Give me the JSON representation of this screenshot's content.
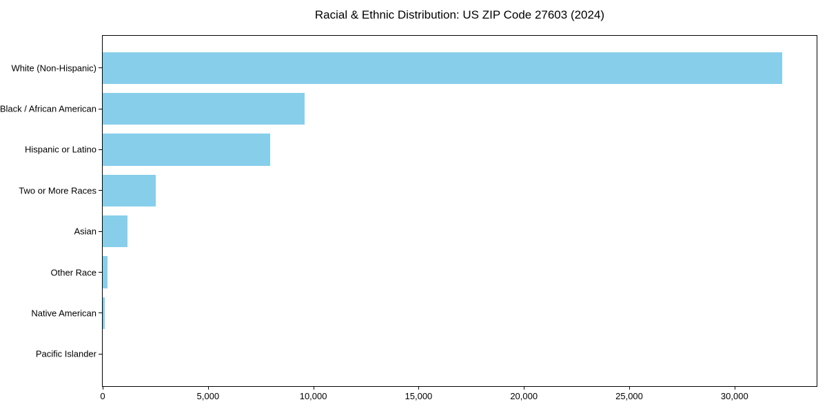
{
  "chart_data": {
    "type": "bar",
    "orientation": "horizontal",
    "title": "Racial & Ethnic Distribution: US ZIP Code 27603 (2024)",
    "categories": [
      "White (Non-Hispanic)",
      "Black / African American",
      "Hispanic or Latino",
      "Two or More Races",
      "Asian",
      "Other Race",
      "Native American",
      "Pacific Islander"
    ],
    "values": [
      32280,
      9600,
      7950,
      2520,
      1190,
      240,
      100,
      0
    ],
    "xlabel": "",
    "ylabel": "",
    "xlim": [
      0,
      33900
    ],
    "x_ticks": [
      0,
      5000,
      10000,
      15000,
      20000,
      25000,
      30000
    ],
    "x_tick_labels": [
      "0",
      "5,000",
      "10,000",
      "15,000",
      "20,000",
      "25,000",
      "30,000"
    ],
    "bar_color": "#87CEEB",
    "axis_color": "#000000",
    "text_color": "#000000",
    "background_color": "#FFFFFF",
    "grid": false,
    "legend": "none"
  }
}
